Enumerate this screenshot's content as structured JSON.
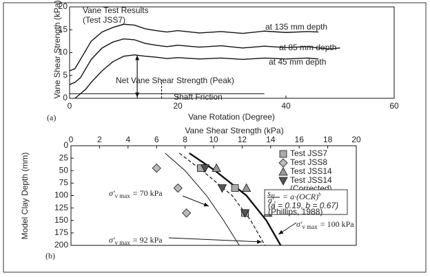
{
  "chart_data": [
    {
      "type": "line",
      "panel_label": "(a)",
      "title": "Vane Test Results",
      "subtitle": "(Test JSS7)",
      "x_label": "Vane Rotation (Degree)",
      "y_label": "Vane Shear Strength (kPa)",
      "xlim": [
        0,
        60
      ],
      "ylim": [
        0,
        20
      ],
      "xticks": [
        0,
        20,
        40,
        60
      ],
      "yticks": [
        0,
        5,
        10,
        15,
        20
      ],
      "x": [
        0,
        1,
        2,
        3,
        4,
        6,
        8,
        10,
        12,
        14,
        16,
        18,
        20,
        24,
        28,
        32,
        36,
        40,
        44,
        46,
        48,
        50
      ],
      "series": [
        {
          "name": "at 135 mm depth",
          "color": "#111",
          "values": [
            6,
            6.5,
            8.5,
            10.5,
            12.5,
            14.5,
            15.5,
            16.2,
            16,
            15.2,
            14.8,
            14.5,
            14.8,
            14.3,
            14.6,
            14.2,
            14.7,
            14.4,
            14.6,
            14.5,
            null,
            null
          ]
        },
        {
          "name": "at 85 mm depth",
          "color": "#111",
          "values": [
            3,
            3.5,
            4.5,
            6.5,
            8.5,
            11,
            12.3,
            13,
            12.8,
            12,
            11.6,
            11.3,
            11.6,
            11.2,
            11.5,
            11,
            11.4,
            11.1,
            11.3,
            11,
            10.8,
            11
          ]
        },
        {
          "name": "at 45 mm depth",
          "color": "#111",
          "values": [
            null,
            0,
            1,
            2,
            3.5,
            6,
            8,
            9.2,
            9.5,
            9.2,
            9,
            8.7,
            8.9,
            8.6,
            8.8,
            8.5,
            8.8,
            8.6,
            8.8,
            8.6,
            null,
            null
          ]
        }
      ],
      "annotations": [
        "Net Vane Shear Strength (Peak)",
        "Shaft Friction"
      ]
    },
    {
      "type": "scatter",
      "panel_label": "(b)",
      "x_label": "Vane Shear Strength (kPa)",
      "y_label": "Model Clay Depth (mm)",
      "xlim": [
        0,
        20
      ],
      "ylim": [
        0,
        200
      ],
      "xticks": [
        0,
        2,
        4,
        6,
        8,
        10,
        12,
        14,
        16,
        18,
        20
      ],
      "yticks": [
        0,
        25,
        50,
        75,
        100,
        125,
        150,
        175,
        200
      ],
      "y_inverted": true,
      "series": [
        {
          "name": "Test JSS7",
          "marker": "square",
          "color": "#aaa",
          "x": [
            9.1,
            11.5,
            12.2
          ],
          "values": [
            45,
            85,
            135
          ]
        },
        {
          "name": "Test JSS8",
          "marker": "diamond",
          "color": "#bbb",
          "x": [
            6.0,
            7.5,
            8.1
          ],
          "values": [
            45,
            85,
            135
          ]
        },
        {
          "name": "Test JSS14",
          "marker": "triangle-up",
          "color": "#999",
          "x": [
            10.2,
            12.3,
            13.8
          ],
          "values": [
            45,
            85,
            135
          ]
        },
        {
          "name": "Test JSS14",
          "name_note": "(Corrected)",
          "marker": "triangle-down",
          "color": "#555",
          "x": [
            9.4,
            10.6,
            12.2
          ],
          "values": [
            45,
            85,
            135
          ]
        }
      ],
      "curve_symbol": "σ′",
      "curve_subscript": "v max",
      "curves": [
        {
          "name": "= 70 kPa",
          "style": "thin",
          "x": [
            6.6,
            8.0,
            9.5,
            10.7,
            11.8
          ],
          "values": [
            15,
            50,
            100,
            150,
            200
          ]
        },
        {
          "name": "= 92  kPa",
          "style": "dashed",
          "x": [
            7.6,
            9.2,
            11.3,
            12.6,
            13.6
          ],
          "values": [
            15,
            50,
            100,
            150,
            200
          ]
        },
        {
          "name": "= 100 kPa",
          "style": "thick",
          "x": [
            8.3,
            10.1,
            12.3,
            13.7,
            14.7
          ],
          "values": [
            15,
            50,
            100,
            150,
            200
          ]
        }
      ],
      "equation_parts": [
        "s",
        "uv",
        "σ′",
        "v",
        "= a·(OCR)",
        "b"
      ],
      "equation_params": "(a = 0.19, b = 0.67)",
      "equation_source": "(Phillips, 1988)"
    }
  ]
}
